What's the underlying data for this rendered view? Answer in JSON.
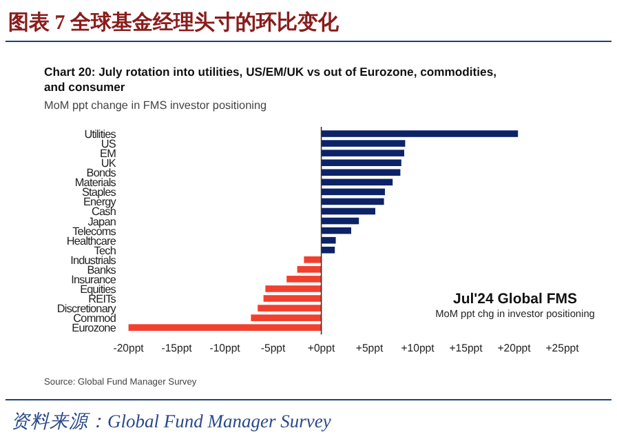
{
  "chart_data": {
    "type": "bar",
    "orientation": "horizontal",
    "title": "图表 7   全球基金经理头寸的环比变化",
    "subtitle": "Chart 20: July rotation into utilities, US/EM/UK vs out of Eurozone, commodities, and consumer",
    "annotations": [
      "MoM ppt change in FMS investor positioning",
      "Jul'24 Global FMS",
      "MoM ppt chg in investor positioning",
      "Source: Global Fund Manager Survey",
      "资料来源：Global Fund Manager Survey"
    ],
    "categories": [
      "Utilities",
      "US",
      "EM",
      "UK",
      "Bonds",
      "Materials",
      "Staples",
      "Energy",
      "Cash",
      "Japan",
      "Telecoms",
      "Healthcare",
      "Tech",
      "Industrials",
      "Banks",
      "Insurance",
      "Equities",
      "REITs",
      "Discretionary",
      "Commod",
      "Eurozone"
    ],
    "values": [
      20.4,
      8.7,
      8.6,
      8.3,
      8.2,
      7.4,
      6.6,
      6.5,
      5.6,
      3.9,
      3.1,
      1.5,
      1.4,
      -1.8,
      -2.5,
      -3.6,
      -5.8,
      -6.0,
      -6.6,
      -7.3,
      -20
    ],
    "colors": [
      "#0c2368",
      "#0c2368",
      "#0c2368",
      "#0c2368",
      "#0c2368",
      "#0c2368",
      "#0c2368",
      "#0c2368",
      "#0c2368",
      "#0c2368",
      "#0c2368",
      "#0c2368",
      "#0c2368",
      "#f2402e",
      "#f2402e",
      "#f2402e",
      "#f2402e",
      "#f2402e",
      "#f2402e",
      "#f2402e",
      "#f2402e"
    ],
    "xlim": [
      -20.5,
      25
    ],
    "xticks": [
      {
        "value": -20,
        "label": "-20ppt"
      },
      {
        "value": -15,
        "label": "-15ppt"
      },
      {
        "value": -10,
        "label": "-10ppt"
      },
      {
        "value": -5,
        "label": "-5ppt"
      },
      {
        "value": 0,
        "label": "+0ppt"
      },
      {
        "value": 5,
        "label": "+5ppt"
      },
      {
        "value": 10,
        "label": "+10ppt"
      },
      {
        "value": 15,
        "label": "+15ppt"
      },
      {
        "value": 20,
        "label": "+20ppt"
      },
      {
        "value": 25,
        "label": "+25ppt"
      }
    ],
    "data_labels": false
  }
}
